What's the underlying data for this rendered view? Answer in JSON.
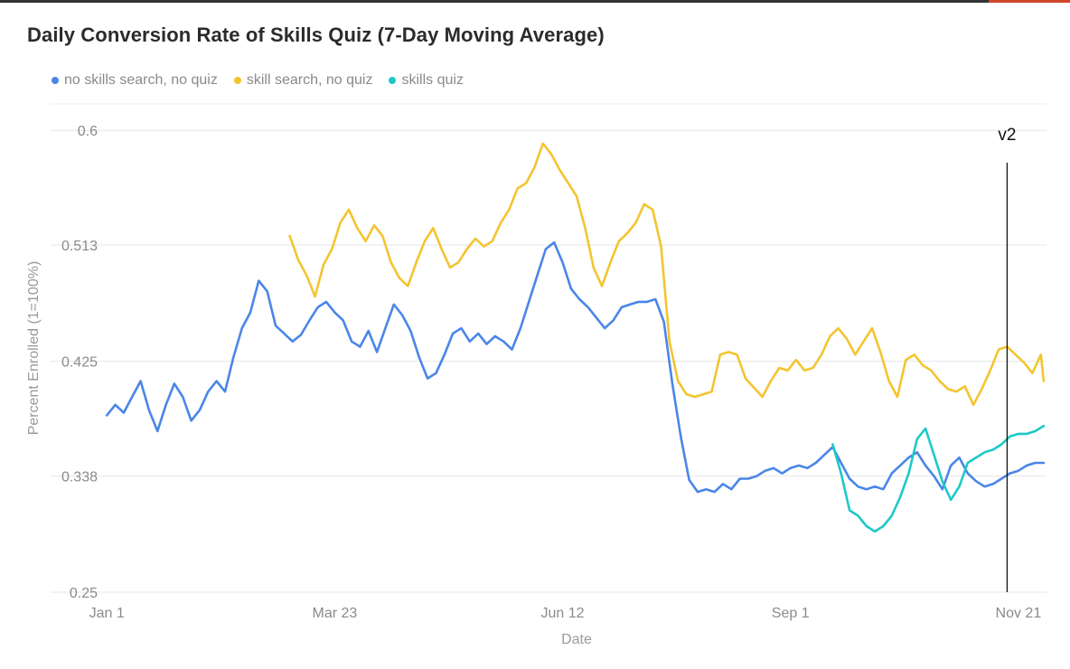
{
  "chart_data": {
    "type": "line",
    "title": "Daily Conversion Rate of Skills Quiz (7-Day Moving Average)",
    "xlabel": "Date",
    "ylabel": "Percent Enrolled (1=100%)",
    "ylim": [
      0.25,
      0.62
    ],
    "yticks": [
      "0.25",
      "0.338",
      "0.425",
      "0.513",
      "0.6"
    ],
    "ytick_values": [
      0.25,
      0.338,
      0.425,
      0.513,
      0.6
    ],
    "xticks": [
      "Jan 1",
      "Mar 23",
      "Jun 12",
      "Sep 1",
      "Nov 21"
    ],
    "xtick_days": [
      0,
      81,
      162,
      243,
      324
    ],
    "x_range_days": [
      -2,
      334
    ],
    "x_unit": "days since Jan 1",
    "grid": true,
    "legend_position": "top-left",
    "annotations": [
      {
        "label": "v2",
        "x_day": 320
      }
    ],
    "series": [
      {
        "name": "no skills search, no quiz",
        "color": "#4a86e8",
        "points": [
          [
            0,
            0.384
          ],
          [
            3,
            0.392
          ],
          [
            6,
            0.386
          ],
          [
            9,
            0.398
          ],
          [
            12,
            0.41
          ],
          [
            15,
            0.388
          ],
          [
            18,
            0.372
          ],
          [
            21,
            0.392
          ],
          [
            24,
            0.408
          ],
          [
            27,
            0.398
          ],
          [
            30,
            0.38
          ],
          [
            33,
            0.388
          ],
          [
            36,
            0.402
          ],
          [
            39,
            0.41
          ],
          [
            42,
            0.402
          ],
          [
            45,
            0.428
          ],
          [
            48,
            0.45
          ],
          [
            51,
            0.462
          ],
          [
            54,
            0.486
          ],
          [
            57,
            0.478
          ],
          [
            60,
            0.452
          ],
          [
            63,
            0.446
          ],
          [
            66,
            0.44
          ],
          [
            69,
            0.445
          ],
          [
            72,
            0.456
          ],
          [
            75,
            0.466
          ],
          [
            78,
            0.47
          ],
          [
            81,
            0.462
          ],
          [
            84,
            0.456
          ],
          [
            87,
            0.44
          ],
          [
            90,
            0.436
          ],
          [
            93,
            0.448
          ],
          [
            96,
            0.432
          ],
          [
            99,
            0.45
          ],
          [
            102,
            0.468
          ],
          [
            105,
            0.46
          ],
          [
            108,
            0.448
          ],
          [
            111,
            0.428
          ],
          [
            114,
            0.412
          ],
          [
            117,
            0.416
          ],
          [
            120,
            0.43
          ],
          [
            123,
            0.446
          ],
          [
            126,
            0.45
          ],
          [
            129,
            0.44
          ],
          [
            132,
            0.446
          ],
          [
            135,
            0.438
          ],
          [
            138,
            0.444
          ],
          [
            141,
            0.44
          ],
          [
            144,
            0.434
          ],
          [
            147,
            0.45
          ],
          [
            150,
            0.47
          ],
          [
            153,
            0.49
          ],
          [
            156,
            0.51
          ],
          [
            159,
            0.515
          ],
          [
            162,
            0.5
          ],
          [
            165,
            0.48
          ],
          [
            168,
            0.472
          ],
          [
            171,
            0.466
          ],
          [
            174,
            0.458
          ],
          [
            177,
            0.45
          ],
          [
            180,
            0.456
          ],
          [
            183,
            0.466
          ],
          [
            186,
            0.468
          ],
          [
            189,
            0.47
          ],
          [
            192,
            0.47
          ],
          [
            195,
            0.472
          ],
          [
            198,
            0.455
          ],
          [
            201,
            0.408
          ],
          [
            204,
            0.368
          ],
          [
            207,
            0.335
          ],
          [
            210,
            0.326
          ],
          [
            213,
            0.328
          ],
          [
            216,
            0.326
          ],
          [
            219,
            0.332
          ],
          [
            222,
            0.328
          ],
          [
            225,
            0.336
          ],
          [
            228,
            0.336
          ],
          [
            231,
            0.338
          ],
          [
            234,
            0.342
          ],
          [
            237,
            0.344
          ],
          [
            240,
            0.34
          ],
          [
            243,
            0.344
          ],
          [
            246,
            0.346
          ],
          [
            249,
            0.344
          ],
          [
            252,
            0.348
          ],
          [
            255,
            0.354
          ],
          [
            258,
            0.36
          ],
          [
            261,
            0.348
          ],
          [
            264,
            0.336
          ],
          [
            267,
            0.33
          ],
          [
            270,
            0.328
          ],
          [
            273,
            0.33
          ],
          [
            276,
            0.328
          ],
          [
            279,
            0.34
          ],
          [
            282,
            0.346
          ],
          [
            285,
            0.352
          ],
          [
            288,
            0.356
          ],
          [
            291,
            0.346
          ],
          [
            294,
            0.338
          ],
          [
            297,
            0.328
          ],
          [
            300,
            0.346
          ],
          [
            303,
            0.352
          ],
          [
            306,
            0.34
          ],
          [
            309,
            0.334
          ],
          [
            312,
            0.33
          ],
          [
            315,
            0.332
          ],
          [
            318,
            0.336
          ],
          [
            321,
            0.34
          ],
          [
            324,
            0.342
          ],
          [
            327,
            0.346
          ],
          [
            330,
            0.348
          ],
          [
            333,
            0.348
          ]
        ]
      },
      {
        "name": "skill search, no quiz",
        "color": "#f4c430",
        "points": [
          [
            65,
            0.52
          ],
          [
            68,
            0.502
          ],
          [
            71,
            0.49
          ],
          [
            74,
            0.474
          ],
          [
            77,
            0.498
          ],
          [
            80,
            0.51
          ],
          [
            83,
            0.53
          ],
          [
            86,
            0.54
          ],
          [
            89,
            0.526
          ],
          [
            92,
            0.516
          ],
          [
            95,
            0.528
          ],
          [
            98,
            0.52
          ],
          [
            101,
            0.5
          ],
          [
            104,
            0.488
          ],
          [
            107,
            0.482
          ],
          [
            110,
            0.5
          ],
          [
            113,
            0.516
          ],
          [
            116,
            0.526
          ],
          [
            119,
            0.51
          ],
          [
            122,
            0.496
          ],
          [
            125,
            0.5
          ],
          [
            128,
            0.51
          ],
          [
            131,
            0.518
          ],
          [
            134,
            0.512
          ],
          [
            137,
            0.516
          ],
          [
            140,
            0.53
          ],
          [
            143,
            0.54
          ],
          [
            146,
            0.556
          ],
          [
            149,
            0.56
          ],
          [
            152,
            0.572
          ],
          [
            155,
            0.59
          ],
          [
            158,
            0.582
          ],
          [
            161,
            0.57
          ],
          [
            164,
            0.56
          ],
          [
            167,
            0.55
          ],
          [
            170,
            0.526
          ],
          [
            173,
            0.496
          ],
          [
            176,
            0.482
          ],
          [
            179,
            0.5
          ],
          [
            182,
            0.516
          ],
          [
            185,
            0.522
          ],
          [
            188,
            0.53
          ],
          [
            191,
            0.544
          ],
          [
            194,
            0.54
          ],
          [
            197,
            0.512
          ],
          [
            200,
            0.44
          ],
          [
            203,
            0.41
          ],
          [
            206,
            0.4
          ],
          [
            209,
            0.398
          ],
          [
            212,
            0.4
          ],
          [
            215,
            0.402
          ],
          [
            218,
            0.43
          ],
          [
            221,
            0.432
          ],
          [
            224,
            0.43
          ],
          [
            227,
            0.412
          ],
          [
            230,
            0.405
          ],
          [
            233,
            0.398
          ],
          [
            236,
            0.41
          ],
          [
            239,
            0.42
          ],
          [
            242,
            0.418
          ],
          [
            245,
            0.426
          ],
          [
            248,
            0.418
          ],
          [
            251,
            0.42
          ],
          [
            254,
            0.43
          ],
          [
            257,
            0.444
          ],
          [
            260,
            0.45
          ],
          [
            263,
            0.442
          ],
          [
            266,
            0.43
          ],
          [
            269,
            0.44
          ],
          [
            272,
            0.45
          ],
          [
            275,
            0.432
          ],
          [
            278,
            0.41
          ],
          [
            281,
            0.398
          ],
          [
            284,
            0.426
          ],
          [
            287,
            0.43
          ],
          [
            290,
            0.422
          ],
          [
            293,
            0.418
          ],
          [
            296,
            0.41
          ],
          [
            299,
            0.404
          ],
          [
            302,
            0.402
          ],
          [
            305,
            0.406
          ],
          [
            308,
            0.392
          ],
          [
            311,
            0.404
          ],
          [
            314,
            0.418
          ],
          [
            317,
            0.434
          ],
          [
            320,
            0.436
          ],
          [
            323,
            0.43
          ],
          [
            326,
            0.424
          ],
          [
            329,
            0.416
          ],
          [
            332,
            0.43
          ],
          [
            333,
            0.41
          ]
        ]
      },
      {
        "name": "skills quiz",
        "color": "#1fc8c8",
        "points": [
          [
            258,
            0.362
          ],
          [
            261,
            0.34
          ],
          [
            264,
            0.312
          ],
          [
            267,
            0.308
          ],
          [
            270,
            0.3
          ],
          [
            273,
            0.296
          ],
          [
            276,
            0.3
          ],
          [
            279,
            0.308
          ],
          [
            282,
            0.322
          ],
          [
            285,
            0.34
          ],
          [
            288,
            0.366
          ],
          [
            291,
            0.374
          ],
          [
            294,
            0.354
          ],
          [
            297,
            0.334
          ],
          [
            300,
            0.32
          ],
          [
            303,
            0.33
          ],
          [
            306,
            0.348
          ],
          [
            309,
            0.352
          ],
          [
            312,
            0.356
          ],
          [
            315,
            0.358
          ],
          [
            318,
            0.362
          ],
          [
            321,
            0.368
          ],
          [
            324,
            0.37
          ],
          [
            327,
            0.37
          ],
          [
            330,
            0.372
          ],
          [
            333,
            0.376
          ]
        ]
      }
    ]
  }
}
